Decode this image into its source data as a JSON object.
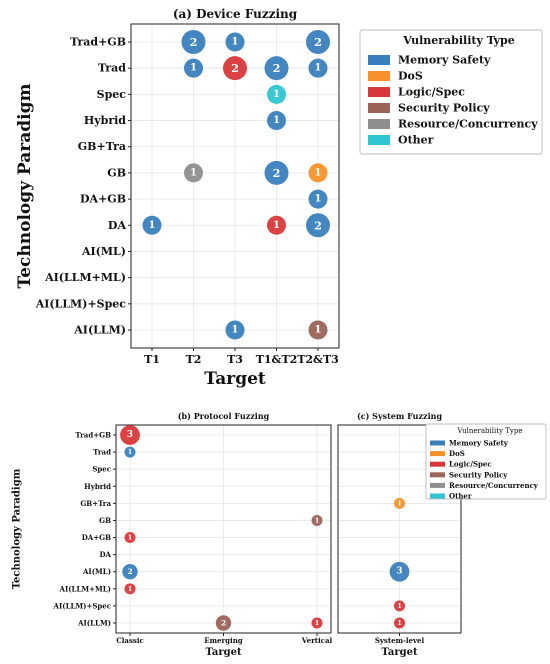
{
  "legend": {
    "title": "Vulnerability Type",
    "items": [
      {
        "label": "Memory Safety",
        "color": "#3a7fbd"
      },
      {
        "label": "DoS",
        "color": "#f7922a"
      },
      {
        "label": "Logic/Spec",
        "color": "#d8383a"
      },
      {
        "label": "Security Policy",
        "color": "#9b6459"
      },
      {
        "label": "Resource/Concurrency",
        "color": "#8e8e8e"
      },
      {
        "label": "Other",
        "color": "#2ec5d1"
      }
    ]
  },
  "chart_data": [
    {
      "type": "scatter",
      "title": "(a) Device Fuzzing",
      "xlabel": "Target",
      "ylabel": "Technology Paradigm",
      "x_categories": [
        "T1",
        "T2",
        "T3",
        "T1&T2",
        "T2&T3"
      ],
      "y_categories": [
        "Trad+GB",
        "Trad",
        "Spec",
        "Hybrid",
        "GB+Tra",
        "GB",
        "DA+GB",
        "DA",
        "AI(ML)",
        "AI(LLM+ML)",
        "AI(LLM)+Spec",
        "AI(LLM)"
      ],
      "grid": true,
      "points": [
        {
          "x": "T2",
          "y": "Trad+GB",
          "count": 2,
          "type": "Memory Safety"
        },
        {
          "x": "T3",
          "y": "Trad+GB",
          "count": 1,
          "type": "Memory Safety"
        },
        {
          "x": "T2&T3",
          "y": "Trad+GB",
          "count": 2,
          "type": "Memory Safety"
        },
        {
          "x": "T2",
          "y": "Trad",
          "count": 1,
          "type": "Memory Safety"
        },
        {
          "x": "T3",
          "y": "Trad",
          "count": 2,
          "type": "Logic/Spec"
        },
        {
          "x": "T1&T2",
          "y": "Trad",
          "count": 2,
          "type": "Memory Safety"
        },
        {
          "x": "T2&T3",
          "y": "Trad",
          "count": 1,
          "type": "Memory Safety"
        },
        {
          "x": "T1&T2",
          "y": "Spec",
          "count": 1,
          "type": "Other"
        },
        {
          "x": "T1&T2",
          "y": "Hybrid",
          "count": 1,
          "type": "Memory Safety"
        },
        {
          "x": "T2",
          "y": "GB",
          "count": 1,
          "type": "Resource/Concurrency"
        },
        {
          "x": "T1&T2",
          "y": "GB",
          "count": 2,
          "type": "Memory Safety"
        },
        {
          "x": "T2&T3",
          "y": "GB",
          "count": 1,
          "type": "DoS"
        },
        {
          "x": "T2&T3",
          "y": "DA+GB",
          "count": 1,
          "type": "Memory Safety"
        },
        {
          "x": "T1",
          "y": "DA",
          "count": 1,
          "type": "Memory Safety"
        },
        {
          "x": "T1&T2",
          "y": "DA",
          "count": 1,
          "type": "Logic/Spec"
        },
        {
          "x": "T2&T3",
          "y": "DA",
          "count": 2,
          "type": "Memory Safety"
        },
        {
          "x": "T3",
          "y": "AI(LLM)",
          "count": 1,
          "type": "Memory Safety"
        },
        {
          "x": "T2&T3",
          "y": "AI(LLM)",
          "count": 1,
          "type": "Security Policy"
        }
      ]
    },
    {
      "type": "scatter",
      "title": "(b) Protocol Fuzzing",
      "xlabel": "Target",
      "ylabel": "Technology Paradigm",
      "x_categories": [
        "Classic",
        "Emerging",
        "Vertical"
      ],
      "y_categories": [
        "Trad+GB",
        "Trad",
        "Spec",
        "Hybrid",
        "GB+Tra",
        "GB",
        "DA+GB",
        "DA",
        "AI(ML)",
        "AI(LLM+ML)",
        "AI(LLM)+Spec",
        "AI(LLM)"
      ],
      "grid": true,
      "points": [
        {
          "x": "Classic",
          "y": "Trad+GB",
          "count": 3,
          "type": "Logic/Spec"
        },
        {
          "x": "Classic",
          "y": "Trad",
          "count": 1,
          "type": "Memory Safety"
        },
        {
          "x": "Vertical",
          "y": "GB",
          "count": 1,
          "type": "Security Policy"
        },
        {
          "x": "Classic",
          "y": "DA+GB",
          "count": 1,
          "type": "Logic/Spec"
        },
        {
          "x": "Classic",
          "y": "AI(ML)",
          "count": 2,
          "type": "Memory Safety"
        },
        {
          "x": "Classic",
          "y": "AI(LLM+ML)",
          "count": 1,
          "type": "Logic/Spec"
        },
        {
          "x": "Emerging",
          "y": "AI(LLM)",
          "count": 2,
          "type": "Security Policy"
        },
        {
          "x": "Vertical",
          "y": "AI(LLM)",
          "count": 1,
          "type": "Logic/Spec"
        }
      ]
    },
    {
      "type": "scatter",
      "title": "(c) System Fuzzing",
      "xlabel": "Target",
      "ylabel": "",
      "x_categories": [
        "System-level"
      ],
      "y_categories": [
        "Trad+GB",
        "Trad",
        "Spec",
        "Hybrid",
        "GB+Tra",
        "GB",
        "DA+GB",
        "DA",
        "AI(ML)",
        "AI(LLM+ML)",
        "AI(LLM)+Spec",
        "AI(LLM)"
      ],
      "grid": true,
      "points": [
        {
          "x": "System-level",
          "y": "GB+Tra",
          "count": 1,
          "type": "DoS"
        },
        {
          "x": "System-level",
          "y": "AI(ML)",
          "count": 3,
          "type": "Memory Safety"
        },
        {
          "x": "System-level",
          "y": "AI(LLM)+Spec",
          "count": 1,
          "type": "Logic/Spec"
        },
        {
          "x": "System-level",
          "y": "AI(LLM)",
          "count": 1,
          "type": "Logic/Spec"
        }
      ]
    }
  ]
}
